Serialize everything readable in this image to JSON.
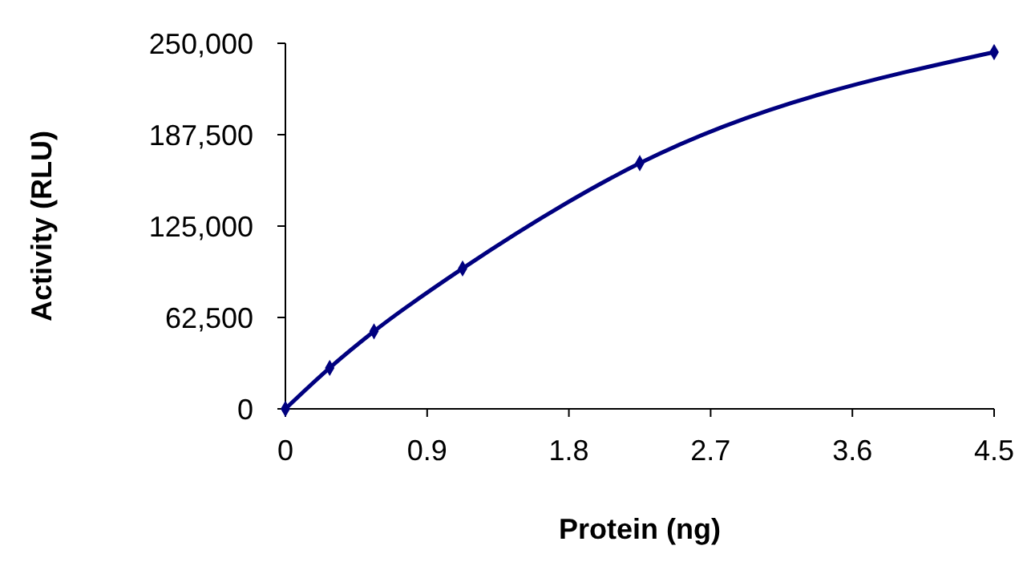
{
  "chart_data": {
    "type": "line",
    "xlabel": "Protein (ng)",
    "ylabel": "Activity (RLU)",
    "x": [
      0,
      0.28125,
      0.5625,
      1.125,
      2.25,
      4.5
    ],
    "series": [
      {
        "color": "#00007f",
        "values": [
          0,
          28000,
          53000,
          96000,
          168000,
          244000
        ]
      }
    ],
    "xlim": [
      0,
      4.5
    ],
    "xticks": [
      0,
      0.9,
      1.8,
      2.7,
      3.6,
      4.5
    ],
    "ylim": [
      0,
      250000
    ],
    "yticks": [
      0,
      {
        "value": 62500,
        "label": "62,500"
      },
      {
        "value": 125000,
        "label": "125,000"
      },
      {
        "value": 187500,
        "label": "187,500"
      },
      {
        "value": 250000,
        "label": "250,000"
      }
    ],
    "marker": "diamond",
    "line_style": "solid"
  }
}
